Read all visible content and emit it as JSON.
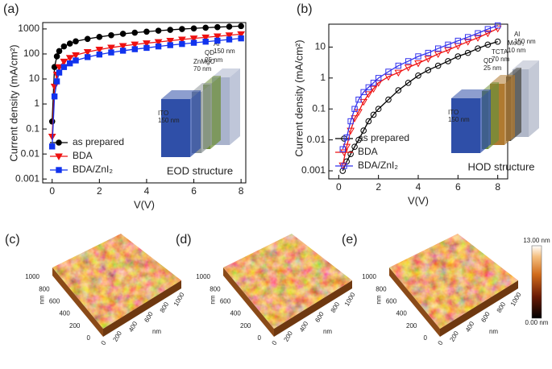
{
  "chart_data": [
    {
      "type": "line",
      "panel_label": "(a)",
      "xlabel": "V(V)",
      "ylabel": "Current density (mA/cm²)",
      "xlim": [
        -0.4,
        8.2
      ],
      "xticks": [
        0,
        2,
        4,
        6,
        8
      ],
      "ylim": [
        0.0007,
        1800
      ],
      "yticks": [
        0.001,
        0.01,
        0.1,
        1,
        10,
        100,
        1000
      ],
      "yscale": "log",
      "legend": "lower left",
      "x": [
        0,
        0.1,
        0.2,
        0.3,
        0.5,
        0.75,
        1,
        1.5,
        2,
        2.5,
        3,
        3.5,
        4,
        4.5,
        5,
        5.5,
        6,
        6.5,
        7,
        7.5,
        8
      ],
      "series": [
        {
          "name": "as prepared",
          "color": "#000000",
          "marker": "o",
          "filled": true,
          "values": [
            0.2,
            30,
            80,
            130,
            200,
            260,
            320,
            400,
            480,
            560,
            640,
            710,
            780,
            850,
            920,
            990,
            1050,
            1120,
            1180,
            1240,
            1300
          ]
        },
        {
          "name": "BDA",
          "color": "#ee1111",
          "marker": "v",
          "filled": true,
          "values": [
            0.05,
            5,
            15,
            30,
            50,
            70,
            90,
            120,
            150,
            180,
            210,
            240,
            270,
            300,
            340,
            380,
            420,
            460,
            510,
            560,
            620
          ]
        },
        {
          "name": "BDA/ZnI₂",
          "color": "#1133ee",
          "marker": "s",
          "filled": true,
          "values": [
            0.02,
            2,
            8,
            18,
            30,
            42,
            55,
            75,
            95,
            115,
            135,
            155,
            175,
            200,
            225,
            250,
            280,
            310,
            340,
            380,
            420
          ]
        }
      ],
      "inset": {
        "caption": "EOD structure",
        "layers": [
          {
            "label": "ITO",
            "thickness": "150 nm",
            "color": "#2f4fa8"
          },
          {
            "label": "ZnMgO",
            "thickness": "70 nm",
            "color": "#8f989a"
          },
          {
            "label": "QD",
            "thickness": "25 nm",
            "color": "#6f8f3a"
          },
          {
            "label": "Al",
            "thickness": "150 nm",
            "color": "#a9b3cc"
          }
        ]
      }
    },
    {
      "type": "line",
      "panel_label": "(b)",
      "xlabel": "V(V)",
      "ylabel": "Current density (mA/cm²)",
      "xlim": [
        -0.5,
        8.5
      ],
      "xticks": [
        0,
        2,
        4,
        6,
        8
      ],
      "ylim": [
        0.00055,
        55
      ],
      "yticks": [
        0.001,
        0.01,
        0.1,
        1,
        10
      ],
      "yscale": "log",
      "legend": "lower left",
      "x": [
        0.2,
        0.4,
        0.6,
        0.8,
        1,
        1.25,
        1.5,
        1.75,
        2,
        2.5,
        3,
        3.5,
        4,
        4.5,
        5,
        5.5,
        6,
        6.5,
        7,
        7.5,
        8
      ],
      "series": [
        {
          "name": "as prepared",
          "color": "#000000",
          "marker": "o",
          "filled": false,
          "values": [
            0.001,
            0.002,
            0.0035,
            0.006,
            0.01,
            0.02,
            0.04,
            0.065,
            0.1,
            0.2,
            0.4,
            0.7,
            1.2,
            1.8,
            2.5,
            3.5,
            5,
            6.5,
            9,
            12,
            15
          ]
        },
        {
          "name": "BDA",
          "color": "#ee1111",
          "marker": "v",
          "filled": false,
          "values": [
            0.0015,
            0.006,
            0.02,
            0.05,
            0.08,
            0.17,
            0.3,
            0.45,
            0.7,
            1.1,
            1.5,
            2.2,
            3,
            4.2,
            6,
            8,
            11,
            15,
            20,
            28,
            40
          ]
        },
        {
          "name": "BDA/ZnI₂",
          "color": "#3333ee",
          "marker": "s",
          "filled": false,
          "values": [
            0.005,
            0.012,
            0.04,
            0.1,
            0.2,
            0.35,
            0.5,
            0.7,
            1,
            1.6,
            2.5,
            3.5,
            5,
            6.5,
            9,
            12,
            16,
            21,
            28,
            38,
            50
          ]
        }
      ],
      "inset": {
        "caption": "HOD structure",
        "layers": [
          {
            "label": "ITO",
            "thickness": "150 nm",
            "color": "#2f4fa8"
          },
          {
            "label": "QD",
            "thickness": "25 nm",
            "color": "#6f8f3a"
          },
          {
            "label": "TCTA",
            "thickness": "70 nm",
            "color": "#b07a30"
          },
          {
            "label": "MoO₃",
            "thickness": "10 nm",
            "color": "#4a4a44"
          },
          {
            "label": "Al",
            "thickness": "150 nm",
            "color": "#b0b7c8"
          }
        ]
      }
    }
  ],
  "afm": {
    "panels": [
      {
        "label": "(c)"
      },
      {
        "label": "(d)"
      },
      {
        "label": "(e)"
      }
    ],
    "axis_ticks": [
      "0",
      "200",
      "400",
      "600",
      "800",
      "1000"
    ],
    "axis_unit": "nm",
    "colorbar": {
      "max": "13.00 nm",
      "min": "0.00 nm"
    }
  }
}
